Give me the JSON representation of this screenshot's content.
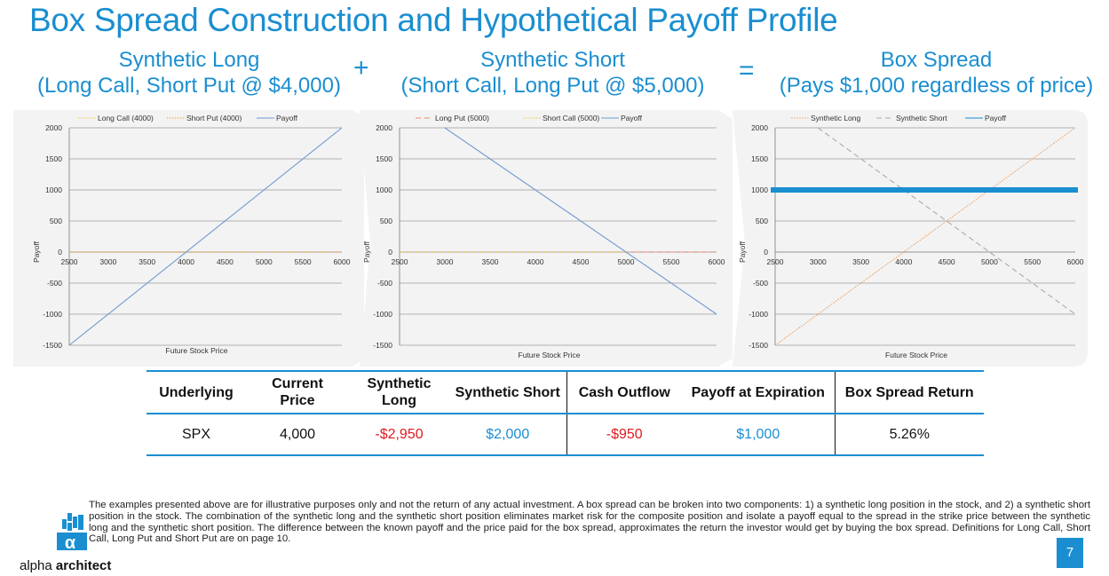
{
  "slide": {
    "title": "Box Spread Construction and Hypothetical Payoff Profile",
    "page_number": "7",
    "brand": {
      "prefix": "alpha",
      "suffix": " architect"
    }
  },
  "headings": {
    "synthetic_long": {
      "line1": "Synthetic Long",
      "line2": "(Long Call, Short Put @ $4,000)"
    },
    "synthetic_short": {
      "line1": "Synthetic Short",
      "line2": "(Short Call, Long Put @ $5,000)"
    },
    "box_spread": {
      "line1": "Box Spread",
      "line2": "(Pays $1,000 regardless of price)"
    },
    "plus_sign": "+",
    "equals_sign": "="
  },
  "chart_data": [
    {
      "type": "line",
      "ylabel": "Payoff",
      "xlabel": "Future Stock Price",
      "xlim": [
        2500,
        6000
      ],
      "ylim": [
        -1500,
        2000
      ],
      "x_ticks": [
        "2500",
        "3000",
        "3500",
        "4000",
        "4500",
        "5000",
        "5500",
        "6000"
      ],
      "y_ticks": [
        "2000",
        "1500",
        "1000",
        "500",
        "0",
        "-500",
        "-1000",
        "-1500"
      ],
      "legend_position": "top",
      "series": [
        {
          "name": "Long Call (4000)",
          "color": "#f0c040",
          "style": "dotted",
          "x": [
            2500,
            4000,
            6000
          ],
          "y": [
            0,
            0,
            0
          ]
        },
        {
          "name": "Short Put (4000)",
          "color": "#e8a030",
          "style": "dotted",
          "x": [
            2500,
            4000,
            6000
          ],
          "y": [
            0,
            0,
            0
          ]
        },
        {
          "name": "Payoff",
          "color": "#6e9bd0",
          "style": "solid",
          "x": [
            2500,
            6000
          ],
          "y": [
            -1500,
            2000
          ]
        }
      ]
    },
    {
      "type": "line",
      "ylabel": "Payoff",
      "xlabel": "Future Stock Price",
      "xlim": [
        2500,
        6000
      ],
      "ylim": [
        -1500,
        2000
      ],
      "x_ticks": [
        "2500",
        "3000",
        "3500",
        "4000",
        "4500",
        "5000",
        "5500",
        "6000"
      ],
      "y_ticks": [
        "2000",
        "1500",
        "1000",
        "500",
        "0",
        "-500",
        "-1000",
        "-1500"
      ],
      "legend_position": "top",
      "series": [
        {
          "name": "Long Put (5000)",
          "color": "#f08a70",
          "style": "dashed",
          "x": [
            5000,
            6000
          ],
          "y": [
            0,
            0
          ]
        },
        {
          "name": "Short Call (5000)",
          "color": "#f0c040",
          "style": "dotted",
          "x": [
            2500,
            5000
          ],
          "y": [
            0,
            0
          ]
        },
        {
          "name": "Payoff",
          "color": "#6e9bd0",
          "style": "solid",
          "x": [
            3000,
            6000
          ],
          "y": [
            2000,
            -1000
          ]
        }
      ]
    },
    {
      "type": "line",
      "ylabel": "Payoff",
      "xlabel": "Future Stock Price",
      "xlim": [
        2500,
        6000
      ],
      "ylim": [
        -1500,
        2000
      ],
      "x_ticks": [
        "2500",
        "3000",
        "3500",
        "4000",
        "4500",
        "5000",
        "5500",
        "6000"
      ],
      "y_ticks": [
        "2000",
        "1500",
        "1000",
        "500",
        "0",
        "-500",
        "-1000",
        "-1500"
      ],
      "legend_position": "top",
      "series": [
        {
          "name": "Synthetic Long",
          "color": "#f0a060",
          "style": "dotted",
          "x": [
            2500,
            6000
          ],
          "y": [
            -1500,
            2000
          ]
        },
        {
          "name": "Synthetic Short",
          "color": "#aaaaaa",
          "style": "dashed",
          "x": [
            3000,
            6000
          ],
          "y": [
            2000,
            -1000
          ]
        },
        {
          "name": "Payoff",
          "color": "#1a8ed0",
          "style": "thick",
          "x": [
            2500,
            6000
          ],
          "y": [
            1000,
            1000
          ]
        }
      ]
    }
  ],
  "table": {
    "headers": [
      {
        "line1": "Underlying",
        "line2": ""
      },
      {
        "line1": "Current",
        "line2": "Price"
      },
      {
        "line1": "Synthetic",
        "line2": "Long"
      },
      {
        "line1": "Synthetic Short",
        "line2": ""
      },
      {
        "line1": "Cash Outflow",
        "line2": ""
      },
      {
        "line1": "Payoff at Expiration",
        "line2": ""
      },
      {
        "line1": "Box Spread Return",
        "line2": ""
      }
    ],
    "row": [
      "SPX",
      "4,000",
      "-$2,950",
      "$2,000",
      "-$950",
      "$1,000",
      "5.26%"
    ]
  },
  "disclaimer": "The examples presented above are for illustrative purposes only and not the return of any actual investment. A box spread can be broken into two components: 1) a synthetic long position in the stock, and 2) a synthetic short position in the stock. The combination of the synthetic long and the synthetic short position eliminates market risk for the composite position and isolate a payoff equal to the spread in the strike price between the synthetic long and the synthetic short position. The difference between the known payoff and the price paid for the box spread, approximates the return the investor would get by buying the box spread. Definitions for Long Call, Short Call, Long Put and Short Put are on page 10.",
  "colors": {
    "accent": "#1a8ed0",
    "negative": "#e0191f",
    "panel_background": "#f3f3f3"
  }
}
